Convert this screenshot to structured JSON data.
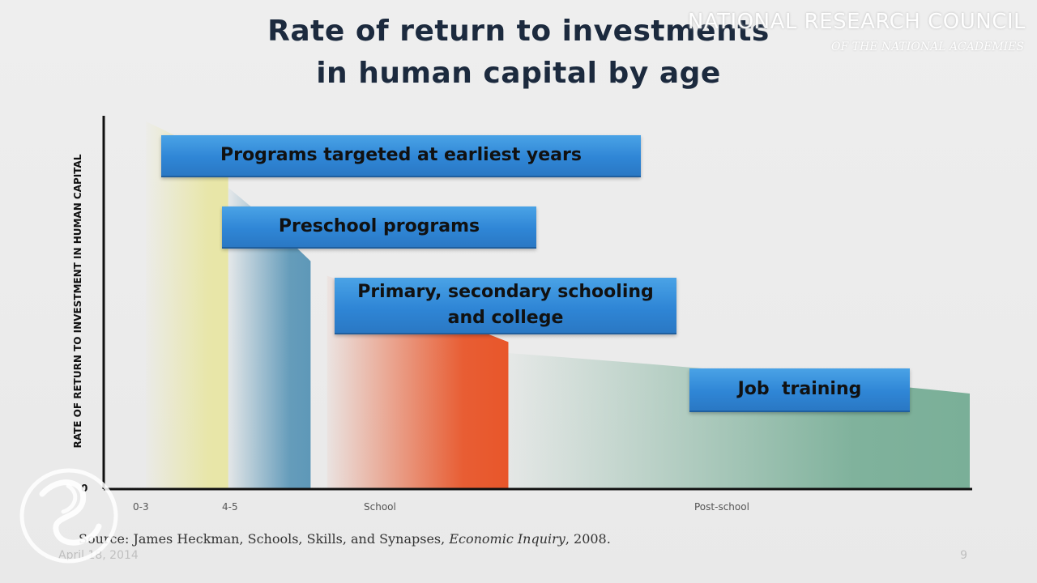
{
  "slide": {
    "title_line1": "Rate of return to investments",
    "title_line2": "in human capital by age",
    "org_name": "NATIONAL RESEARCH COUNCIL",
    "org_subtitle": "OF THE NATIONAL ACADEMIES",
    "source_prefix": "Source: James Heckman, Schools, Skills, and Synapses, ",
    "source_journal": "Economic Inquiry",
    "source_suffix": ", 2008.",
    "date": "April 18, 2014",
    "page_number": "9",
    "logo_icon": "academies-swirl-logo-icon"
  },
  "chart_data": {
    "type": "area",
    "title": "Rate of return to investments in human capital by age",
    "ylabel": "RATE OF RETURN TO INVESTMENT IN HUMAN CAPITAL",
    "y_origin_label": "0",
    "x_tick_labels": [
      "0-3",
      "4-5",
      "School",
      "Post-school"
    ],
    "y_scale": "relative (no numeric ticks)",
    "segments": [
      {
        "label": "0-3",
        "x_start": 0.0,
        "x_end": 0.1,
        "y_start": 1.0,
        "y_end": 0.88,
        "color": "#e8e6a6"
      },
      {
        "label": "4-5",
        "x_start": 0.1,
        "x_end": 0.2,
        "y_start": 0.82,
        "y_end": 0.62,
        "color": "#5e98b8"
      },
      {
        "label": "School",
        "x_start": 0.22,
        "x_end": 0.44,
        "y_start": 0.58,
        "y_end": 0.4,
        "color": "#e8562a"
      },
      {
        "label": "Post-school",
        "x_start": 0.44,
        "x_end": 1.0,
        "y_start": 0.37,
        "y_end": 0.26,
        "color": "#7aaf98"
      }
    ],
    "annotations": [
      "Programs targeted at earliest years",
      "Preschool programs",
      "Primary, secondary schooling and college",
      "Job  training"
    ],
    "colors": {
      "box": "#2f86d6",
      "axis": "#111111"
    }
  }
}
